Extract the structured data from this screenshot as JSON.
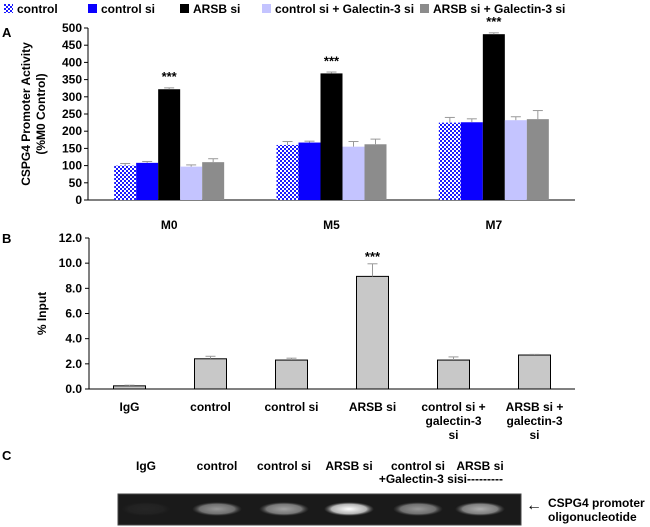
{
  "legend": [
    {
      "label": "control",
      "color": "#ffffff",
      "pattern": "dots"
    },
    {
      "label": "control si",
      "color": "#0a00ff"
    },
    {
      "label": "ARSB si",
      "color": "#000000"
    },
    {
      "label": "control si + Galectin-3 si",
      "color": "#c4c4ff"
    },
    {
      "label": "ARSB si + Galectin-3 si",
      "color": "#8c8c8c"
    }
  ],
  "panels": {
    "a": "A",
    "b": "B",
    "c": "C"
  },
  "chart_data": [
    {
      "type": "bar",
      "panel": "A",
      "ylabel_line1": "CSPG4 Promoter Activity",
      "ylabel_line2": "(%M0 Control)",
      "ylim": [
        0,
        500
      ],
      "yticks": [
        "0",
        "50",
        "100",
        "150",
        "200",
        "250",
        "300",
        "350",
        "400",
        "450",
        "500"
      ],
      "categories": [
        "M0",
        "M5",
        "M7"
      ],
      "series": [
        {
          "name": "control",
          "values": [
            100,
            160,
            225
          ],
          "errors": [
            6,
            10,
            15
          ]
        },
        {
          "name": "control si",
          "values": [
            108,
            167,
            226
          ],
          "errors": [
            4,
            4,
            10
          ]
        },
        {
          "name": "ARSB si",
          "values": [
            322,
            368,
            482
          ],
          "errors": [
            4,
            4,
            4
          ]
        },
        {
          "name": "control si + Galectin-3 si",
          "values": [
            97,
            155,
            232
          ],
          "errors": [
            5,
            15,
            10
          ]
        },
        {
          "name": "ARSB si + Galectin-3 si",
          "values": [
            110,
            162,
            235
          ],
          "errors": [
            10,
            15,
            25
          ]
        }
      ],
      "annotations": [
        {
          "category": "M0",
          "series": "ARSB si",
          "text": "***"
        },
        {
          "category": "M5",
          "series": "ARSB si",
          "text": "***"
        },
        {
          "category": "M7",
          "series": "ARSB si",
          "text": "***"
        }
      ]
    },
    {
      "type": "bar",
      "panel": "B",
      "ylabel": "% Input",
      "ylim": [
        0,
        12
      ],
      "yticks": [
        "0.0",
        "2.0",
        "4.0",
        "6.0",
        "8.0",
        "10.0",
        "12.0"
      ],
      "categories": [
        [
          "IgG"
        ],
        [
          "control"
        ],
        [
          "control si"
        ],
        [
          "ARSB si"
        ],
        [
          "control si +",
          "galectin-3",
          "si"
        ],
        [
          "ARSB si +",
          "galectin-3",
          "si"
        ]
      ],
      "values": [
        0.25,
        2.4,
        2.3,
        8.95,
        2.3,
        2.7
      ],
      "errors": [
        0.05,
        0.2,
        0.15,
        1.0,
        0.25,
        0.05
      ],
      "bar_color": "#c8c8c8",
      "annotations": [
        {
          "index": 3,
          "text": "***"
        }
      ]
    }
  ],
  "gel": {
    "lanes": [
      [
        "IgG"
      ],
      [
        "control"
      ],
      [
        "control si"
      ],
      [
        "ARSB si"
      ],
      [
        "control si",
        "+Galectin-3 si"
      ],
      [
        "ARSB si",
        "si---------"
      ]
    ],
    "arrow": "←",
    "band_label_line1": "CSPG4 promoter",
    "band_label_line2": "oligonucleotide",
    "band_intensities": [
      0.05,
      0.55,
      0.6,
      1.0,
      0.55,
      0.65
    ]
  }
}
